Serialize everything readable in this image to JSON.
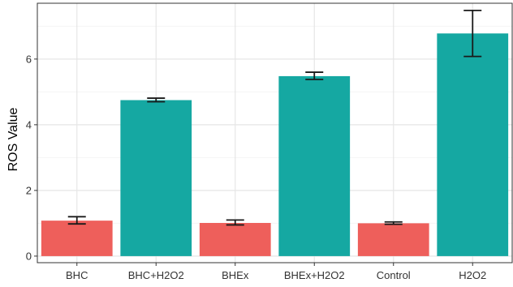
{
  "chart_data": {
    "type": "bar",
    "title": "",
    "xlabel": "",
    "ylabel": "ROS Value",
    "categories": [
      "BHC",
      "BHC+H2O2",
      "BHEx",
      "BHEx+H2O2",
      "Control",
      "H2O2"
    ],
    "values": [
      1.08,
      4.75,
      1.01,
      5.48,
      1.0,
      6.78
    ],
    "error_low": [
      0.98,
      4.7,
      0.95,
      5.38,
      0.97,
      6.08
    ],
    "error_high": [
      1.2,
      4.81,
      1.1,
      5.6,
      1.04,
      7.48
    ],
    "bar_colors": [
      "#ee5f5b",
      "#15a8a2",
      "#ee5f5b",
      "#15a8a2",
      "#ee5f5b",
      "#15a8a2"
    ],
    "y_ticks": [
      0,
      2,
      4,
      6
    ],
    "ylim": [
      -0.2,
      7.7
    ],
    "grid": true,
    "legend": "none"
  },
  "colors": {
    "panel_border": "#333333",
    "grid_major": "#e6e6e6",
    "grid_minor": "#f4f4f4",
    "error_bar": "#1a1a1a"
  }
}
